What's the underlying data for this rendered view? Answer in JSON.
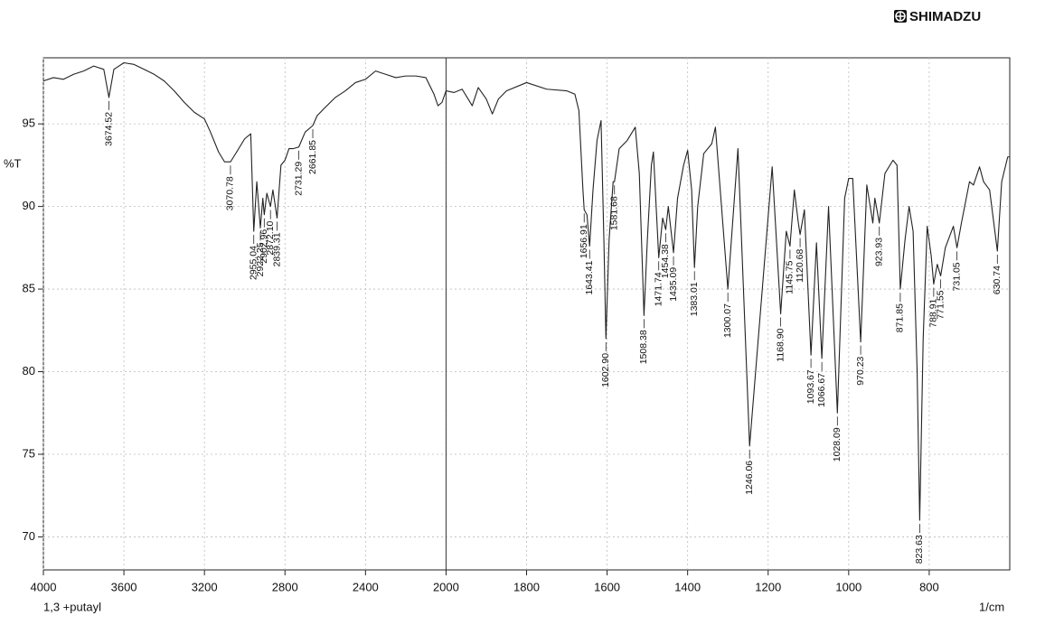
{
  "chart_data": {
    "type": "line",
    "brand": "SHIMADZU",
    "y_label": "%T",
    "x_label": "1/cm",
    "sample": "1,3 +putayl",
    "xlim": [
      4000,
      600
    ],
    "x_scale_break": 2000,
    "xticks": [
      4000,
      3600,
      3200,
      2800,
      2400,
      2000,
      1800,
      1600,
      1400,
      1200,
      1000,
      800
    ],
    "ylim": [
      68,
      99
    ],
    "yticks": [
      70,
      75,
      80,
      85,
      90,
      95
    ],
    "grid": true,
    "series": [
      {
        "name": "1,3 +putayl",
        "color": "#222222",
        "x": [
          4000,
          3950,
          3900,
          3850,
          3800,
          3750,
          3700,
          3674.52,
          3650,
          3600,
          3550,
          3500,
          3450,
          3400,
          3350,
          3300,
          3250,
          3200,
          3170,
          3130,
          3100,
          3070.78,
          3040,
          3000,
          2970,
          2955.04,
          2940,
          2922.25,
          2910,
          2902.96,
          2890,
          2872.1,
          2860,
          2839.31,
          2820,
          2800,
          2780,
          2760,
          2731.29,
          2700,
          2661.85,
          2640,
          2600,
          2550,
          2500,
          2450,
          2400,
          2350,
          2300,
          2250,
          2200,
          2150,
          2100,
          2060,
          2040,
          2020,
          2000,
          1980,
          1960,
          1935,
          1920,
          1900,
          1885,
          1870,
          1850,
          1800,
          1750,
          1700,
          1680,
          1670,
          1660,
          1656.91,
          1650,
          1643.41,
          1635,
          1625,
          1615,
          1608,
          1602.9,
          1595,
          1585,
          1581.68,
          1570,
          1550,
          1530,
          1520,
          1508.38,
          1500,
          1490,
          1485,
          1471.74,
          1462,
          1454.38,
          1448,
          1435.09,
          1425,
          1410,
          1400,
          1390,
          1383.01,
          1375,
          1360,
          1340,
          1331,
          1300.07,
          1275,
          1246.06,
          1190,
          1168.9,
          1155,
          1145.75,
          1135,
          1125,
          1120.68,
          1110,
          1093.67,
          1080,
          1066.67,
          1050,
          1028.09,
          1010,
          1000,
          990,
          970.23,
          955,
          940,
          935,
          923.93,
          910,
          890,
          880,
          871.85,
          860,
          850,
          840,
          830,
          823.63,
          815,
          805,
          795,
          788.91,
          780,
          771.55,
          760,
          740,
          731.05,
          720,
          700,
          690,
          675,
          665,
          650,
          630.74,
          620,
          605,
          600
        ],
        "values": [
          97.6,
          97.8,
          97.7,
          98.0,
          98.2,
          98.5,
          98.3,
          96.6,
          98.3,
          98.7,
          98.6,
          98.3,
          98.0,
          97.6,
          97.0,
          96.3,
          95.7,
          95.3,
          94.5,
          93.3,
          92.7,
          92.7,
          93.3,
          94.1,
          94.4,
          88.5,
          91.5,
          88.7,
          90.5,
          89.5,
          90.8,
          90.0,
          91.0,
          89.3,
          92.5,
          92.8,
          93.5,
          93.5,
          93.6,
          94.5,
          94.9,
          95.5,
          96.0,
          96.6,
          97.0,
          97.5,
          97.7,
          98.2,
          98.0,
          97.8,
          97.9,
          97.9,
          97.8,
          96.8,
          96.1,
          96.3,
          97.0,
          96.9,
          97.1,
          96.1,
          97.2,
          96.5,
          95.6,
          96.5,
          97.0,
          97.5,
          97.1,
          97.0,
          96.8,
          95.8,
          91.0,
          89.8,
          89.5,
          87.6,
          91.0,
          94.0,
          95.2,
          88.0,
          82.0,
          88.0,
          91.5,
          91.5,
          93.5,
          94.0,
          94.8,
          92.0,
          83.4,
          88.0,
          92.5,
          93.3,
          86.9,
          89.3,
          88.6,
          90.0,
          87.2,
          90.5,
          92.5,
          93.4,
          91.0,
          86.3,
          90.0,
          93.2,
          93.8,
          94.8,
          85.0,
          93.5,
          75.5,
          92.4,
          83.5,
          88.5,
          87.6,
          91.0,
          89.0,
          88.3,
          89.8,
          81.0,
          87.8,
          80.8,
          90.0,
          77.5,
          90.5,
          91.7,
          91.7,
          81.8,
          91.3,
          89.0,
          90.5,
          89.0,
          92.0,
          92.8,
          92.5,
          85.0,
          88.0,
          90.0,
          88.5,
          80.0,
          71.0,
          82.0,
          88.8,
          87.0,
          85.3,
          86.5,
          85.8,
          87.5,
          88.8,
          87.5,
          89.0,
          91.5,
          91.3,
          92.4,
          91.5,
          91.0,
          87.3,
          91.5,
          93.0,
          93.0
        ]
      }
    ],
    "peaks": [
      {
        "value": 3674.52,
        "label": "3674.52"
      },
      {
        "value": 3070.78,
        "label": "3070.78"
      },
      {
        "value": 2955.04,
        "label": "2955.04"
      },
      {
        "value": 2922.25,
        "label": "2922.25"
      },
      {
        "value": 2902.96,
        "label": "2902.96"
      },
      {
        "value": 2872.1,
        "label": "2872.10"
      },
      {
        "value": 2839.31,
        "label": "2839.31"
      },
      {
        "value": 2731.29,
        "label": "2731.29"
      },
      {
        "value": 2661.85,
        "label": "2661.85"
      },
      {
        "value": 1656.91,
        "label": "1656.91"
      },
      {
        "value": 1643.41,
        "label": "1643.41"
      },
      {
        "value": 1602.9,
        "label": "1602.90"
      },
      {
        "value": 1581.68,
        "label": "1581.68"
      },
      {
        "value": 1508.38,
        "label": "1508.38"
      },
      {
        "value": 1471.74,
        "label": "1471.74"
      },
      {
        "value": 1454.38,
        "label": "1454.38"
      },
      {
        "value": 1435.09,
        "label": "1435.09"
      },
      {
        "value": 1383.01,
        "label": "1383.01"
      },
      {
        "value": 1300.07,
        "label": "1300.07"
      },
      {
        "value": 1246.06,
        "label": "1246.06"
      },
      {
        "value": 1168.9,
        "label": "1168.90"
      },
      {
        "value": 1145.75,
        "label": "1145.75"
      },
      {
        "value": 1120.68,
        "label": "1120.68"
      },
      {
        "value": 1093.67,
        "label": "1093.67"
      },
      {
        "value": 1066.67,
        "label": "1066.67"
      },
      {
        "value": 1028.09,
        "label": "1028.09"
      },
      {
        "value": 970.23,
        "label": "970.23"
      },
      {
        "value": 923.93,
        "label": "923.93"
      },
      {
        "value": 871.85,
        "label": "871.85"
      },
      {
        "value": 823.63,
        "label": "823.63"
      },
      {
        "value": 788.91,
        "label": "788.91"
      },
      {
        "value": 771.55,
        "label": "771.55"
      },
      {
        "value": 731.05,
        "label": "731.05"
      },
      {
        "value": 630.74,
        "label": "630.74"
      }
    ]
  }
}
